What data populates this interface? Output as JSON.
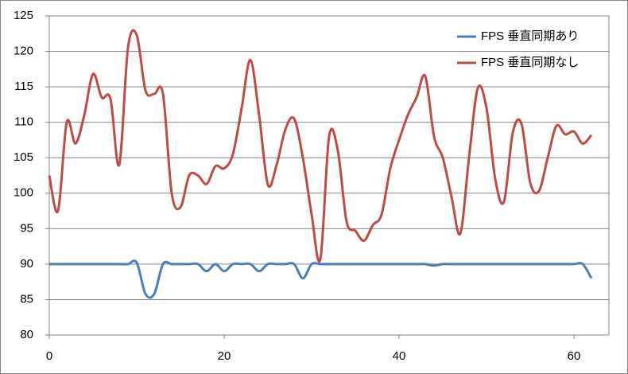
{
  "chart_data": {
    "type": "line",
    "x": [
      0,
      1,
      2,
      3,
      4,
      5,
      6,
      7,
      8,
      9,
      10,
      11,
      12,
      13,
      14,
      15,
      16,
      17,
      18,
      19,
      20,
      21,
      22,
      23,
      24,
      25,
      26,
      27,
      28,
      29,
      30,
      31,
      32,
      33,
      34,
      35,
      36,
      37,
      38,
      39,
      40,
      41,
      42,
      43,
      44,
      45,
      46,
      47,
      48,
      49,
      50,
      51,
      52,
      53,
      54,
      55,
      56,
      57,
      58,
      59,
      60,
      61,
      62
    ],
    "series": [
      {
        "name": "FPS 垂直同期あり",
        "color": "#4a7ebb",
        "values": [
          90,
          90,
          90,
          90,
          90,
          90,
          90,
          90,
          90,
          90,
          90.2,
          85.8,
          85.8,
          90,
          90,
          90,
          90,
          90,
          89,
          90,
          89,
          90,
          90,
          90,
          89,
          90,
          90,
          90,
          90,
          88,
          90,
          90,
          90,
          90,
          90,
          90,
          90,
          90,
          90,
          90,
          90,
          90,
          90,
          90,
          89.8,
          90,
          90,
          90,
          90,
          90,
          90,
          90,
          90,
          90,
          90,
          90,
          90,
          90,
          90,
          90,
          90,
          90,
          88
        ]
      },
      {
        "name": "FPS 垂直同期なし",
        "color": "#be4b48",
        "values": [
          102.5,
          97.5,
          110,
          107,
          111,
          116.8,
          113.5,
          113.3,
          104,
          120.5,
          122.3,
          114.5,
          114,
          114,
          100,
          98,
          102.5,
          102.5,
          101.3,
          103.8,
          103.5,
          105.5,
          112,
          118.8,
          111,
          101.2,
          104,
          109,
          110.5,
          105,
          97,
          90.7,
          108,
          106,
          96,
          94.7,
          93.3,
          95.5,
          97,
          103.5,
          107.5,
          111,
          113.5,
          116.5,
          108,
          105,
          99.5,
          94.3,
          105,
          114.8,
          112,
          102,
          98.8,
          108.5,
          109.8,
          101.5,
          100.3,
          105,
          109.5,
          108.3,
          108.7,
          107,
          108.2
        ]
      }
    ],
    "xlim": [
      0,
      64
    ],
    "xticks": [
      0,
      20,
      40,
      60
    ],
    "ylim": [
      80,
      125
    ],
    "yticks": [
      80,
      85,
      90,
      95,
      100,
      105,
      110,
      115,
      120,
      125
    ],
    "grid": true,
    "legend": "upper-right"
  }
}
